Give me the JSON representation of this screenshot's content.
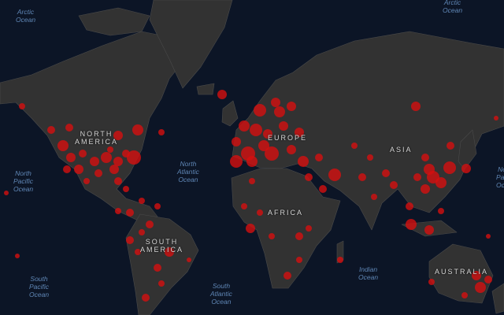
{
  "map": {
    "colors": {
      "ocean": "#0c1526",
      "land": "#323232",
      "borders": "#4a4a4a",
      "bubble": "#d40f0f"
    },
    "oceans": [
      {
        "id": "arctic-left",
        "lines": [
          "Arctic",
          "Ocean"
        ]
      },
      {
        "id": "arctic-right",
        "lines": [
          "Arctic",
          "Ocean"
        ]
      },
      {
        "id": "north-pacific-left",
        "lines": [
          "North",
          "Pacific",
          "Ocean"
        ]
      },
      {
        "id": "north-pacific-right",
        "lines": [
          "North",
          "Pacific",
          "Ocean"
        ]
      },
      {
        "id": "north-atlantic",
        "lines": [
          "North",
          "Atlantic",
          "Ocean"
        ]
      },
      {
        "id": "south-pacific",
        "lines": [
          "South",
          "Pacific",
          "Ocean"
        ]
      },
      {
        "id": "south-atlantic",
        "lines": [
          "South",
          "Atlantic",
          "Ocean"
        ]
      },
      {
        "id": "indian",
        "lines": [
          "Indian",
          "Ocean"
        ]
      }
    ],
    "continents": [
      {
        "id": "north-america",
        "lines": [
          "NORTH",
          "AMERICA"
        ]
      },
      {
        "id": "europe",
        "lines": [
          "EUROPE"
        ]
      },
      {
        "id": "asia",
        "lines": [
          "ASIA"
        ]
      },
      {
        "id": "africa",
        "lines": [
          "AFRICA"
        ]
      },
      {
        "id": "south-america",
        "lines": [
          "SOUTH",
          "AMERICA"
        ]
      },
      {
        "id": "australia",
        "lines": [
          "AUSTRALIA"
        ]
      }
    ]
  }
}
